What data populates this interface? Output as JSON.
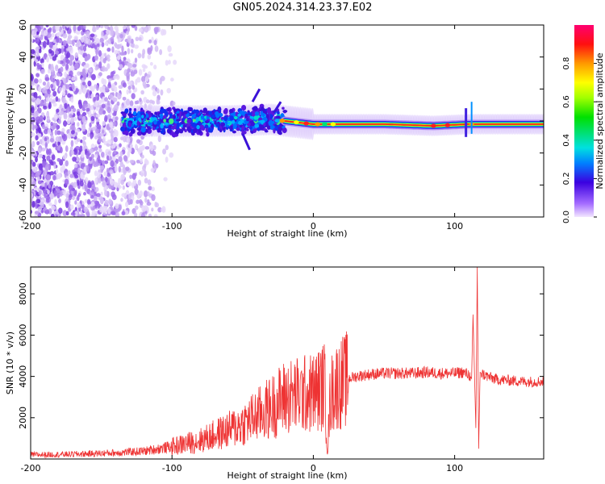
{
  "title": "GN05.2024.314.23.37.E02",
  "chart_data": [
    {
      "type": "heatmap",
      "xlabel": "Height of straight line (km)",
      "ylabel": "Frequency (Hz)",
      "xlim": [
        -200,
        163
      ],
      "ylim": [
        -60,
        60
      ],
      "xticks": [
        -200,
        -100,
        0,
        100
      ],
      "yticks": [
        -60,
        -40,
        -20,
        0,
        20,
        40,
        60
      ],
      "colorbar": {
        "label": "Normalized spectral amplitude",
        "range": [
          0,
          1
        ],
        "ticks": [
          "0.0",
          "0.2",
          "0.4",
          "0.6",
          "0.8"
        ]
      },
      "features": {
        "noise_region_x": [
          -200,
          -95
        ],
        "signal_centerline": [
          {
            "x": -135,
            "y": 0
          },
          {
            "x": -100,
            "y": 0
          },
          {
            "x": -60,
            "y": 0
          },
          {
            "x": -30,
            "y": 1
          },
          {
            "x": 0,
            "y": -2
          },
          {
            "x": 50,
            "y": -2
          },
          {
            "x": 85,
            "y": -3
          },
          {
            "x": 110,
            "y": -2
          },
          {
            "x": 163,
            "y": -2
          }
        ]
      }
    },
    {
      "type": "line",
      "xlabel": "Height of straight line (km)",
      "ylabel": "SNR (10 * v/v)",
      "xlim": [
        -200,
        163
      ],
      "ylim": [
        0,
        9300
      ],
      "xticks": [
        -200,
        -100,
        0,
        100
      ],
      "yticks": [
        2000,
        4000,
        6000,
        8000
      ],
      "series": [
        {
          "color": "#ee3333",
          "x": [
            -200,
            -170,
            -140,
            -120,
            -100,
            -80,
            -60,
            -50,
            -40,
            -30,
            -20,
            -10,
            0,
            5,
            8,
            10,
            12,
            15,
            20,
            25,
            30,
            40,
            50,
            60,
            70,
            80,
            90,
            100,
            105,
            110,
            112,
            113,
            115,
            116,
            117,
            118,
            120,
            125,
            130,
            140,
            150,
            163
          ],
          "values": [
            200,
            230,
            300,
            380,
            600,
            900,
            1400,
            1700,
            2100,
            2500,
            3000,
            3100,
            3200,
            3400,
            3600,
            400,
            3000,
            3500,
            3700,
            3900,
            4000,
            4100,
            4150,
            4150,
            4150,
            4200,
            4150,
            4150,
            4200,
            4100,
            3900,
            7000,
            1500,
            9300,
            500,
            4200,
            4100,
            3950,
            3850,
            3800,
            3750,
            3750
          ]
        }
      ]
    }
  ]
}
